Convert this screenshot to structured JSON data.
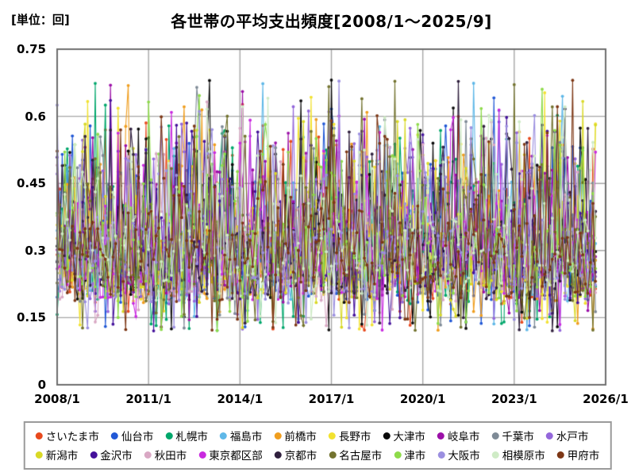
{
  "header": {
    "unit_label": "[単位：回]",
    "title": "各世帯の平均支出頻度[2008/1～2025/9]"
  },
  "colors": {
    "background": "#ffffff",
    "plot_border": "#6e6e6e",
    "gridline": "#a6a6a6",
    "text": "#000000",
    "legend_border": "#9a9a9a"
  },
  "chart_data": {
    "type": "line",
    "title": "各世帯の平均支出頻度[2008/1～2025/9]",
    "ylabel_unit": "[単位：回]",
    "xlabel": "",
    "ylim": [
      0,
      0.75
    ],
    "y_ticks": [
      0,
      0.15,
      0.3,
      0.45,
      0.6,
      0.75
    ],
    "y_tick_labels": [
      "0",
      "0.15",
      "0.3",
      "0.45",
      "0.6",
      "0.75"
    ],
    "x_tick_labels": [
      "2008/1",
      "2011/1",
      "2014/1",
      "2017/1",
      "2020/1",
      "2023/1",
      "2026/1"
    ],
    "x_axis_total_months": 216,
    "x_tick_interval_months": 36,
    "data_start": "2008/1",
    "data_end": "2025/9",
    "n_points": 213,
    "grid": true,
    "marker": "circle",
    "legend_position": "bottom",
    "observed_value_range": [
      0.12,
      0.7
    ],
    "typical_value_band": [
      0.17,
      0.5
    ],
    "series": [
      {
        "name": "さいたま市",
        "color": "#E8491D",
        "seed": 11
      },
      {
        "name": "仙台市",
        "color": "#2158D6",
        "seed": 23
      },
      {
        "name": "札幌市",
        "color": "#00A76B",
        "seed": 37
      },
      {
        "name": "福島市",
        "color": "#5FB8E8",
        "seed": 41
      },
      {
        "name": "前橋市",
        "color": "#F09E1F",
        "seed": 53
      },
      {
        "name": "長野市",
        "color": "#F2E230",
        "seed": 67
      },
      {
        "name": "大津市",
        "color": "#0A0A0A",
        "seed": 71
      },
      {
        "name": "岐阜市",
        "color": "#9C10A8",
        "seed": 83
      },
      {
        "name": "千葉市",
        "color": "#7E8A96",
        "seed": 97
      },
      {
        "name": "水戸市",
        "color": "#9467DB",
        "seed": 109
      },
      {
        "name": "新潟市",
        "color": "#D9D926",
        "seed": 113
      },
      {
        "name": "金沢市",
        "color": "#44119B",
        "seed": 127
      },
      {
        "name": "秋田市",
        "color": "#D9A8C4",
        "seed": 131
      },
      {
        "name": "東京都区部",
        "color": "#C92ADF",
        "seed": 139
      },
      {
        "name": "京都市",
        "color": "#30203E",
        "seed": 149
      },
      {
        "name": "名古屋市",
        "color": "#73732F",
        "seed": 151
      },
      {
        "name": "津市",
        "color": "#8EDB4A",
        "seed": 163
      },
      {
        "name": "大阪市",
        "color": "#9B8FE0",
        "seed": 167
      },
      {
        "name": "相模原市",
        "color": "#CFEBC6",
        "seed": 173
      },
      {
        "name": "甲府市",
        "color": "#7D3715",
        "seed": 179
      }
    ]
  }
}
